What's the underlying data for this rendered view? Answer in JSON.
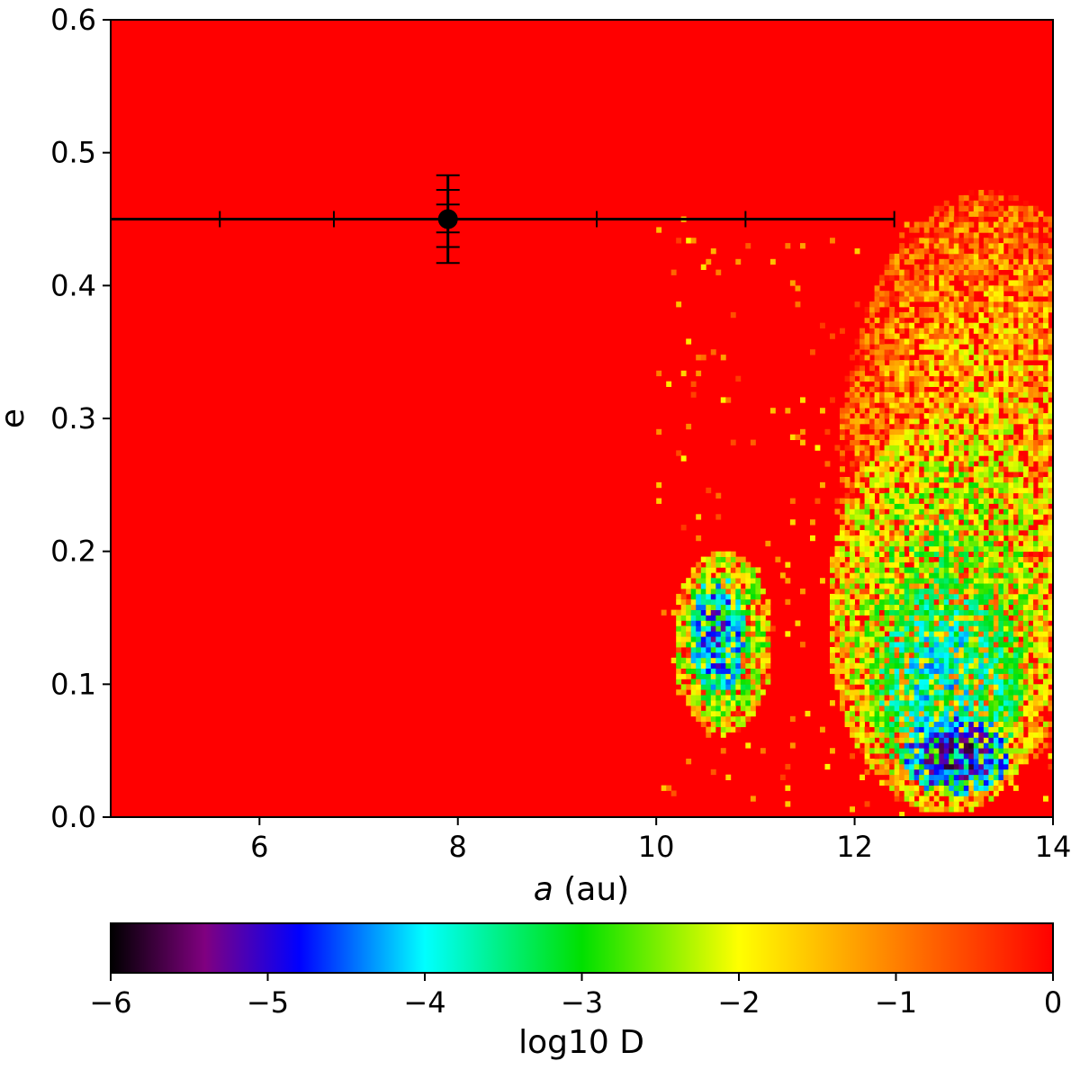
{
  "chart_data": {
    "type": "heatmap",
    "title": "",
    "xlabel_italic": "a",
    "xlabel_rest": " (au)",
    "ylabel": "e",
    "xlim": [
      4.5,
      14
    ],
    "ylim": [
      0.0,
      0.6
    ],
    "xticks": [
      6,
      8,
      10,
      12,
      14
    ],
    "xtick_labels": [
      "6",
      "8",
      "10",
      "12",
      "14"
    ],
    "yticks": [
      0.0,
      0.1,
      0.2,
      0.3,
      0.4,
      0.5,
      0.6
    ],
    "ytick_labels": [
      "0.0",
      "0.1",
      "0.2",
      "0.3",
      "0.4",
      "0.5",
      "0.6"
    ],
    "grid": false,
    "background_value": 0,
    "colorbar": {
      "label": "log10 D",
      "orientation": "horizontal",
      "placement": "bottom",
      "range": [
        -6,
        0
      ],
      "ticks": [
        -6,
        -5,
        -4,
        -3,
        -2,
        -1,
        0
      ],
      "tick_labels": [
        "−6",
        "−5",
        "−4",
        "−3",
        "−2",
        "−1",
        "0"
      ],
      "colormap": [
        {
          "value": -6.0,
          "color": "#000000"
        },
        {
          "value": -5.4,
          "color": "#800080"
        },
        {
          "value": -4.8,
          "color": "#0000ff"
        },
        {
          "value": -4.0,
          "color": "#00ffff"
        },
        {
          "value": -3.0,
          "color": "#00e000"
        },
        {
          "value": -2.0,
          "color": "#ffff00"
        },
        {
          "value": -1.0,
          "color": "#ff8000"
        },
        {
          "value": 0.0,
          "color": "#ff0000"
        }
      ]
    },
    "stable_regions": [
      {
        "name": "island",
        "a": 10.6,
        "e": 0.135,
        "spread_a": 0.28,
        "spread_e": 0.045,
        "log10D": -4.7
      },
      {
        "name": "island-halo",
        "a": 10.65,
        "e": 0.13,
        "spread_a": 0.5,
        "spread_e": 0.07,
        "log10D": -3.0
      },
      {
        "name": "outer-core",
        "a": 13.0,
        "e": 0.045,
        "spread_a": 0.55,
        "spread_e": 0.03,
        "log10D": -5.2
      },
      {
        "name": "outer-inner",
        "a": 12.9,
        "e": 0.1,
        "spread_a": 0.8,
        "spread_e": 0.08,
        "log10D": -3.8
      },
      {
        "name": "outer-mid",
        "a": 12.9,
        "e": 0.15,
        "spread_a": 1.2,
        "spread_e": 0.15,
        "log10D": -2.8
      },
      {
        "name": "outer-edge",
        "a": 13.3,
        "e": 0.25,
        "spread_a": 1.5,
        "spread_e": 0.22,
        "log10D": -1.8
      }
    ],
    "planet": {
      "a": 7.9,
      "e": 0.45,
      "a_errors": [
        [
          5.6,
          9.4
        ],
        [
          6.75,
          10.9
        ],
        [
          4.5,
          12.4
        ]
      ],
      "e_errors": [
        [
          0.44,
          0.461
        ],
        [
          0.429,
          0.472
        ],
        [
          0.417,
          0.483
        ]
      ]
    }
  }
}
